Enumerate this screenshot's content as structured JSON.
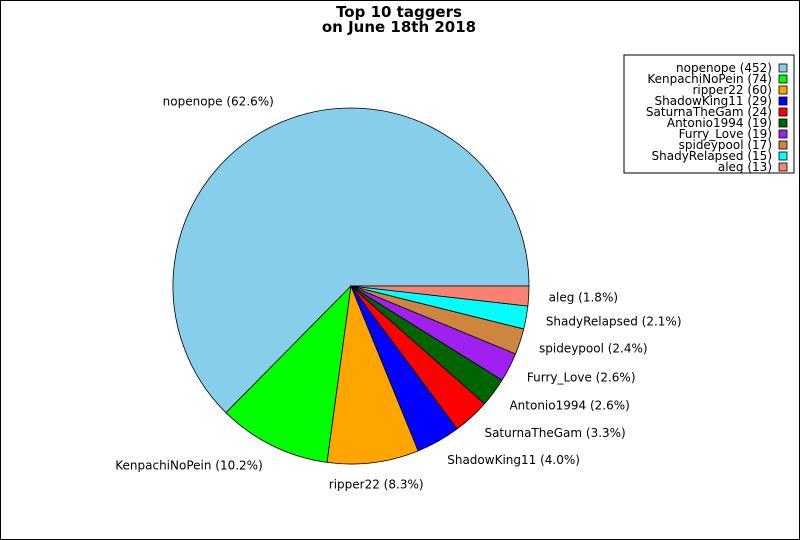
{
  "chart_data": {
    "type": "pie",
    "title": [
      "Top 10 taggers",
      "on June 18th 2018"
    ],
    "legend_position": "top-right",
    "start_angle_deg": 0,
    "direction": "counterclockwise",
    "slices": [
      {
        "label": "nopenope",
        "value": 452,
        "percent": "62.6%",
        "color": "#87ceeb"
      },
      {
        "label": "KenpachiNoPein",
        "value": 74,
        "percent": "10.2%",
        "color": "#00ff00"
      },
      {
        "label": "ripper22",
        "value": 60,
        "percent": "8.3%",
        "color": "#ffa500"
      },
      {
        "label": "ShadowKing11",
        "value": 29,
        "percent": "4.0%",
        "color": "#0000ff"
      },
      {
        "label": "SaturnaTheGam",
        "value": 24,
        "percent": "3.3%",
        "color": "#ff0000"
      },
      {
        "label": "Antonio1994",
        "value": 19,
        "percent": "2.6%",
        "color": "#006400"
      },
      {
        "label": "Furry_Love",
        "value": 19,
        "percent": "2.6%",
        "color": "#a020f0"
      },
      {
        "label": "spideypool",
        "value": 17,
        "percent": "2.4%",
        "color": "#cd853f"
      },
      {
        "label": "ShadyRelapsed",
        "value": 15,
        "percent": "2.1%",
        "color": "#00ffff"
      },
      {
        "label": "aleg",
        "value": 13,
        "percent": "1.8%",
        "color": "#fa8072"
      }
    ]
  }
}
